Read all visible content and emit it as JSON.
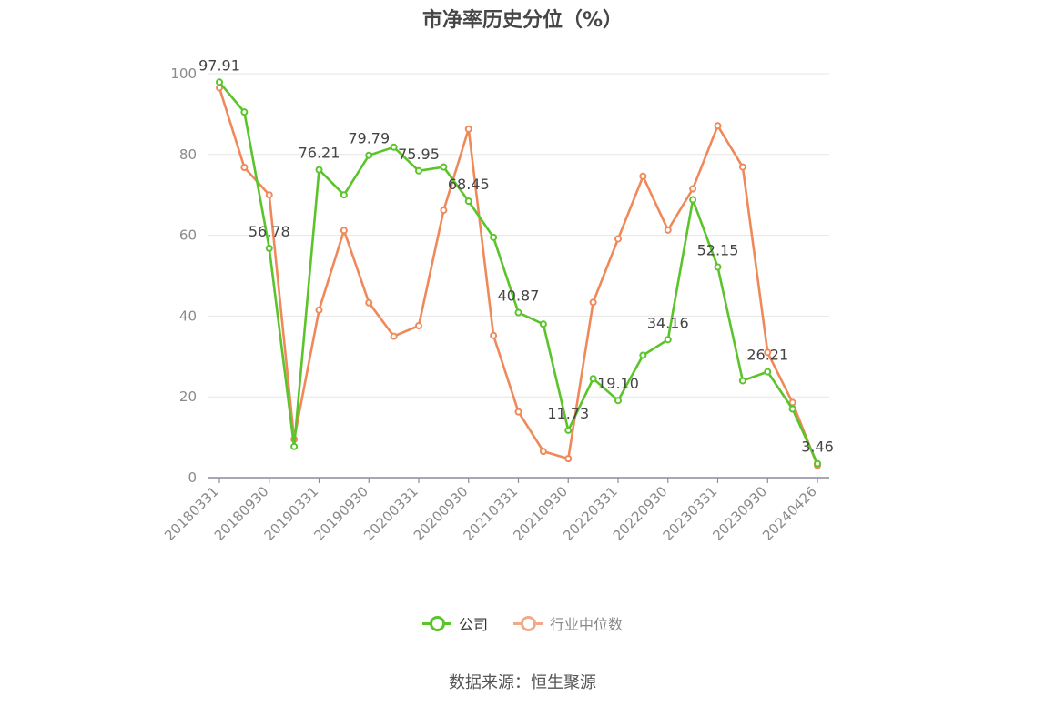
{
  "title": "市净率历史分位（%）",
  "source": "数据来源：恒生聚源",
  "legend": [
    {
      "label": "公司",
      "color": "#5ac42a"
    },
    {
      "label": "行业中位数",
      "color": "#f4a88a"
    }
  ],
  "chart_data": {
    "type": "line",
    "title": "市净率历史分位（%）",
    "xlabel": "",
    "ylabel": "",
    "ylim": [
      0,
      100
    ],
    "yticks": [
      0,
      20,
      40,
      60,
      80,
      100
    ],
    "grid": true,
    "legend_position": "bottom",
    "x": [
      "20180331",
      "20180630",
      "20180930",
      "20181231",
      "20190331",
      "20190630",
      "20190930",
      "20191231",
      "20200331",
      "20200630",
      "20200930",
      "20201231",
      "20210331",
      "20210630",
      "20210930",
      "20211231",
      "20220331",
      "20220630",
      "20220930",
      "20221231",
      "20230331",
      "20230630",
      "20230930",
      "20231231",
      "20240426"
    ],
    "x_tick_labels": [
      "20180331",
      "20180930",
      "20190331",
      "20190930",
      "20200331",
      "20200930",
      "20210331",
      "20210930",
      "20220331",
      "20220930",
      "20230331",
      "20230930",
      "20240426"
    ],
    "series": [
      {
        "name": "公司",
        "color": "#5ac42a",
        "values": [
          97.91,
          90.5,
          56.78,
          7.7,
          76.21,
          70.0,
          79.79,
          81.8,
          75.95,
          76.9,
          68.45,
          59.5,
          40.87,
          38.0,
          11.73,
          24.5,
          19.1,
          30.3,
          34.16,
          68.8,
          52.15,
          24.0,
          26.21,
          17.0,
          3.46
        ],
        "labels": [
          "97.91",
          null,
          "56.78",
          null,
          "76.21",
          null,
          "79.79",
          null,
          "75.95",
          null,
          "68.45",
          null,
          "40.87",
          null,
          "11.73",
          null,
          "19.10",
          null,
          "34.16",
          null,
          "52.15",
          null,
          "26.21",
          null,
          "3.46"
        ]
      },
      {
        "name": "行业中位数",
        "color": "#f0895a",
        "values": [
          96.5,
          76.8,
          70.0,
          9.5,
          41.5,
          61.2,
          43.3,
          35.0,
          37.6,
          66.2,
          86.3,
          35.2,
          16.3,
          6.5,
          4.7,
          43.4,
          59.1,
          74.6,
          61.3,
          71.5,
          87.1,
          76.9,
          31.0,
          18.6,
          3.0
        ]
      }
    ]
  }
}
